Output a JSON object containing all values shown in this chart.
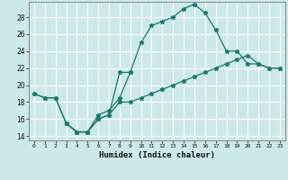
{
  "xlabel": "Humidex (Indice chaleur)",
  "bg_color": "#cce8e8",
  "grid_color": "#ffffff",
  "line_color": "#1a7a6e",
  "xlim": [
    -0.5,
    23.5
  ],
  "ylim": [
    13.5,
    29.8
  ],
  "xticks": [
    0,
    1,
    2,
    3,
    4,
    5,
    6,
    7,
    8,
    9,
    10,
    11,
    12,
    13,
    14,
    15,
    16,
    17,
    18,
    19,
    20,
    21,
    22,
    23
  ],
  "yticks": [
    14,
    16,
    18,
    20,
    22,
    24,
    26,
    28
  ],
  "line1_x": [
    0,
    1,
    2,
    3,
    4,
    5,
    6,
    7,
    8,
    9,
    10,
    11,
    12,
    13,
    14,
    15,
    16,
    17,
    18,
    19,
    20,
    21,
    22,
    23
  ],
  "line1_y": [
    19.0,
    18.5,
    18.5,
    15.5,
    14.5,
    14.5,
    16.5,
    17.0,
    18.5,
    21.5,
    25.0,
    27.0,
    27.5,
    28.0,
    29.0,
    29.5,
    28.5,
    26.5,
    24.0,
    24.0,
    22.5,
    22.5,
    22.0,
    22.0
  ],
  "line2_x": [
    0,
    1,
    2,
    3,
    4,
    5,
    6,
    7,
    8,
    9,
    10,
    11,
    12,
    13,
    14,
    15,
    16,
    17,
    18,
    19,
    20,
    21,
    22,
    23
  ],
  "line2_y": [
    19.0,
    18.5,
    18.5,
    15.5,
    14.5,
    14.5,
    16.0,
    16.5,
    18.0,
    18.0,
    18.5,
    19.0,
    19.5,
    20.0,
    20.5,
    21.0,
    21.5,
    22.0,
    22.5,
    23.0,
    23.5,
    22.5,
    22.0,
    22.0
  ],
  "line3_x": [
    3,
    4,
    5,
    6,
    7,
    8,
    9
  ],
  "line3_y": [
    15.5,
    14.5,
    14.5,
    16.0,
    16.5,
    21.5,
    21.5
  ]
}
